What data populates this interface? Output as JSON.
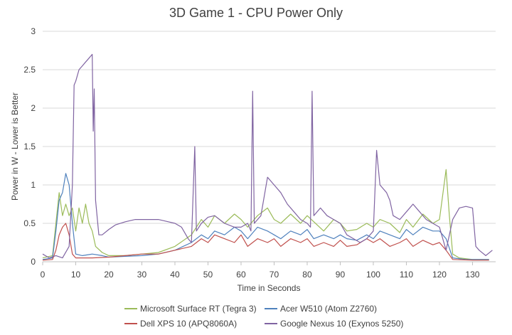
{
  "chart_data": {
    "type": "line",
    "title": "3D Game 1 - CPU Power Only",
    "xlabel": "Time in Seconds",
    "ylabel": "Power in W - Lower is Better",
    "xlim": [
      0,
      137
    ],
    "ylim": [
      0,
      3
    ],
    "x_ticks": [
      0,
      10,
      20,
      30,
      40,
      50,
      60,
      70,
      80,
      90,
      100,
      110,
      120,
      130
    ],
    "y_ticks": [
      0,
      0.5,
      1,
      1.5,
      2,
      2.5,
      3
    ],
    "y_tick_labels": [
      "0",
      "0.5",
      "1",
      "1.5",
      "2",
      "2.5",
      "3"
    ],
    "grid": "horizontal",
    "legend_position": "bottom",
    "series": [
      {
        "name": "Microsoft Surface RT (Tegra 3)",
        "color": "#9bbb59",
        "points": [
          [
            0,
            0.05
          ],
          [
            3,
            0.08
          ],
          [
            4,
            0.5
          ],
          [
            5,
            0.9
          ],
          [
            6,
            0.6
          ],
          [
            7,
            0.75
          ],
          [
            8,
            0.6
          ],
          [
            9,
            0.7
          ],
          [
            10,
            0.4
          ],
          [
            11,
            0.7
          ],
          [
            12,
            0.5
          ],
          [
            13,
            0.75
          ],
          [
            14,
            0.5
          ],
          [
            15,
            0.4
          ],
          [
            16,
            0.2
          ],
          [
            18,
            0.12
          ],
          [
            20,
            0.08
          ],
          [
            25,
            0.08
          ],
          [
            30,
            0.1
          ],
          [
            35,
            0.12
          ],
          [
            40,
            0.2
          ],
          [
            45,
            0.35
          ],
          [
            48,
            0.55
          ],
          [
            50,
            0.45
          ],
          [
            52,
            0.6
          ],
          [
            55,
            0.5
          ],
          [
            58,
            0.62
          ],
          [
            60,
            0.55
          ],
          [
            62,
            0.45
          ],
          [
            65,
            0.6
          ],
          [
            68,
            0.7
          ],
          [
            70,
            0.55
          ],
          [
            72,
            0.5
          ],
          [
            75,
            0.62
          ],
          [
            78,
            0.5
          ],
          [
            80,
            0.6
          ],
          [
            82,
            0.52
          ],
          [
            85,
            0.4
          ],
          [
            88,
            0.55
          ],
          [
            90,
            0.5
          ],
          [
            92,
            0.4
          ],
          [
            95,
            0.42
          ],
          [
            98,
            0.5
          ],
          [
            100,
            0.45
          ],
          [
            102,
            0.55
          ],
          [
            105,
            0.5
          ],
          [
            108,
            0.38
          ],
          [
            110,
            0.55
          ],
          [
            112,
            0.45
          ],
          [
            115,
            0.62
          ],
          [
            118,
            0.5
          ],
          [
            120,
            0.55
          ],
          [
            122,
            1.2
          ],
          [
            123,
            0.6
          ],
          [
            124,
            0.1
          ],
          [
            126,
            0.05
          ],
          [
            130,
            0.03
          ],
          [
            135,
            0.03
          ]
        ]
      },
      {
        "name": "Acer W510 (Atom Z2760)",
        "color": "#4f81bd",
        "points": [
          [
            0,
            0.03
          ],
          [
            3,
            0.05
          ],
          [
            4,
            0.4
          ],
          [
            5,
            0.8
          ],
          [
            6,
            0.9
          ],
          [
            7,
            1.15
          ],
          [
            8,
            1.0
          ],
          [
            9,
            0.5
          ],
          [
            10,
            0.1
          ],
          [
            12,
            0.08
          ],
          [
            15,
            0.1
          ],
          [
            18,
            0.08
          ],
          [
            20,
            0.06
          ],
          [
            25,
            0.07
          ],
          [
            30,
            0.08
          ],
          [
            35,
            0.1
          ],
          [
            40,
            0.15
          ],
          [
            45,
            0.25
          ],
          [
            48,
            0.35
          ],
          [
            50,
            0.3
          ],
          [
            52,
            0.4
          ],
          [
            55,
            0.35
          ],
          [
            58,
            0.45
          ],
          [
            60,
            0.4
          ],
          [
            62,
            0.3
          ],
          [
            65,
            0.45
          ],
          [
            68,
            0.4
          ],
          [
            70,
            0.35
          ],
          [
            72,
            0.3
          ],
          [
            75,
            0.4
          ],
          [
            78,
            0.35
          ],
          [
            80,
            0.42
          ],
          [
            82,
            0.3
          ],
          [
            85,
            0.35
          ],
          [
            88,
            0.3
          ],
          [
            90,
            0.35
          ],
          [
            92,
            0.3
          ],
          [
            95,
            0.28
          ],
          [
            98,
            0.35
          ],
          [
            100,
            0.3
          ],
          [
            102,
            0.4
          ],
          [
            105,
            0.35
          ],
          [
            108,
            0.3
          ],
          [
            110,
            0.42
          ],
          [
            112,
            0.35
          ],
          [
            115,
            0.45
          ],
          [
            118,
            0.4
          ],
          [
            120,
            0.4
          ],
          [
            122,
            0.3
          ],
          [
            124,
            0.05
          ],
          [
            128,
            0.03
          ],
          [
            135,
            0.03
          ]
        ]
      },
      {
        "name": "Dell XPS 10 (APQ8060A)",
        "color": "#c0504d",
        "points": [
          [
            0,
            0.02
          ],
          [
            3,
            0.03
          ],
          [
            4,
            0.15
          ],
          [
            5,
            0.35
          ],
          [
            6,
            0.45
          ],
          [
            7,
            0.5
          ],
          [
            8,
            0.35
          ],
          [
            9,
            0.1
          ],
          [
            10,
            0.05
          ],
          [
            15,
            0.05
          ],
          [
            20,
            0.06
          ],
          [
            25,
            0.08
          ],
          [
            30,
            0.1
          ],
          [
            35,
            0.1
          ],
          [
            40,
            0.15
          ],
          [
            45,
            0.2
          ],
          [
            48,
            0.3
          ],
          [
            50,
            0.25
          ],
          [
            52,
            0.35
          ],
          [
            55,
            0.3
          ],
          [
            58,
            0.25
          ],
          [
            60,
            0.35
          ],
          [
            62,
            0.2
          ],
          [
            65,
            0.3
          ],
          [
            68,
            0.25
          ],
          [
            70,
            0.3
          ],
          [
            72,
            0.2
          ],
          [
            75,
            0.3
          ],
          [
            78,
            0.25
          ],
          [
            80,
            0.3
          ],
          [
            82,
            0.2
          ],
          [
            85,
            0.25
          ],
          [
            88,
            0.2
          ],
          [
            90,
            0.28
          ],
          [
            92,
            0.2
          ],
          [
            95,
            0.22
          ],
          [
            98,
            0.3
          ],
          [
            100,
            0.25
          ],
          [
            102,
            0.3
          ],
          [
            105,
            0.2
          ],
          [
            108,
            0.25
          ],
          [
            110,
            0.3
          ],
          [
            112,
            0.2
          ],
          [
            115,
            0.28
          ],
          [
            118,
            0.22
          ],
          [
            120,
            0.25
          ],
          [
            122,
            0.15
          ],
          [
            124,
            0.03
          ],
          [
            130,
            0.02
          ],
          [
            135,
            0.02
          ]
        ]
      },
      {
        "name": "Google Nexus 10 (Exynos 5250)",
        "color": "#8064a2",
        "points": [
          [
            0,
            0.1
          ],
          [
            2,
            0.05
          ],
          [
            4,
            0.08
          ],
          [
            6,
            0.05
          ],
          [
            8,
            0.2
          ],
          [
            9,
            1.0
          ],
          [
            9.5,
            2.3
          ],
          [
            10,
            2.35
          ],
          [
            11,
            2.5
          ],
          [
            12,
            2.55
          ],
          [
            13,
            2.6
          ],
          [
            14,
            2.65
          ],
          [
            15,
            2.7
          ],
          [
            15.3,
            1.7
          ],
          [
            15.6,
            2.25
          ],
          [
            16,
            0.8
          ],
          [
            17,
            0.35
          ],
          [
            18,
            0.35
          ],
          [
            20,
            0.42
          ],
          [
            22,
            0.48
          ],
          [
            25,
            0.52
          ],
          [
            28,
            0.55
          ],
          [
            30,
            0.55
          ],
          [
            32,
            0.55
          ],
          [
            35,
            0.55
          ],
          [
            38,
            0.52
          ],
          [
            40,
            0.5
          ],
          [
            42,
            0.45
          ],
          [
            44,
            0.3
          ],
          [
            45,
            0.25
          ],
          [
            46,
            1.5
          ],
          [
            46.5,
            0.4
          ],
          [
            48,
            0.5
          ],
          [
            50,
            0.58
          ],
          [
            52,
            0.6
          ],
          [
            55,
            0.5
          ],
          [
            58,
            0.45
          ],
          [
            60,
            0.45
          ],
          [
            62,
            0.5
          ],
          [
            63,
            0.4
          ],
          [
            63.5,
            2.22
          ],
          [
            64,
            0.5
          ],
          [
            66,
            0.6
          ],
          [
            68,
            1.1
          ],
          [
            70,
            1.0
          ],
          [
            72,
            0.9
          ],
          [
            74,
            0.75
          ],
          [
            76,
            0.65
          ],
          [
            78,
            0.55
          ],
          [
            80,
            0.5
          ],
          [
            81,
            0.45
          ],
          [
            81.5,
            2.22
          ],
          [
            82,
            0.6
          ],
          [
            84,
            0.7
          ],
          [
            86,
            0.6
          ],
          [
            88,
            0.55
          ],
          [
            90,
            0.5
          ],
          [
            92,
            0.35
          ],
          [
            94,
            0.3
          ],
          [
            96,
            0.25
          ],
          [
            98,
            0.3
          ],
          [
            100,
            0.4
          ],
          [
            101,
            1.45
          ],
          [
            102,
            1.0
          ],
          [
            104,
            0.9
          ],
          [
            105,
            0.8
          ],
          [
            106,
            0.6
          ],
          [
            108,
            0.55
          ],
          [
            110,
            0.65
          ],
          [
            112,
            0.75
          ],
          [
            114,
            0.65
          ],
          [
            116,
            0.55
          ],
          [
            118,
            0.5
          ],
          [
            120,
            0.45
          ],
          [
            122,
            0.15
          ],
          [
            124,
            0.55
          ],
          [
            126,
            0.7
          ],
          [
            128,
            0.72
          ],
          [
            130,
            0.7
          ],
          [
            131,
            0.2
          ],
          [
            132,
            0.15
          ],
          [
            134,
            0.08
          ],
          [
            136,
            0.15
          ]
        ]
      }
    ]
  }
}
